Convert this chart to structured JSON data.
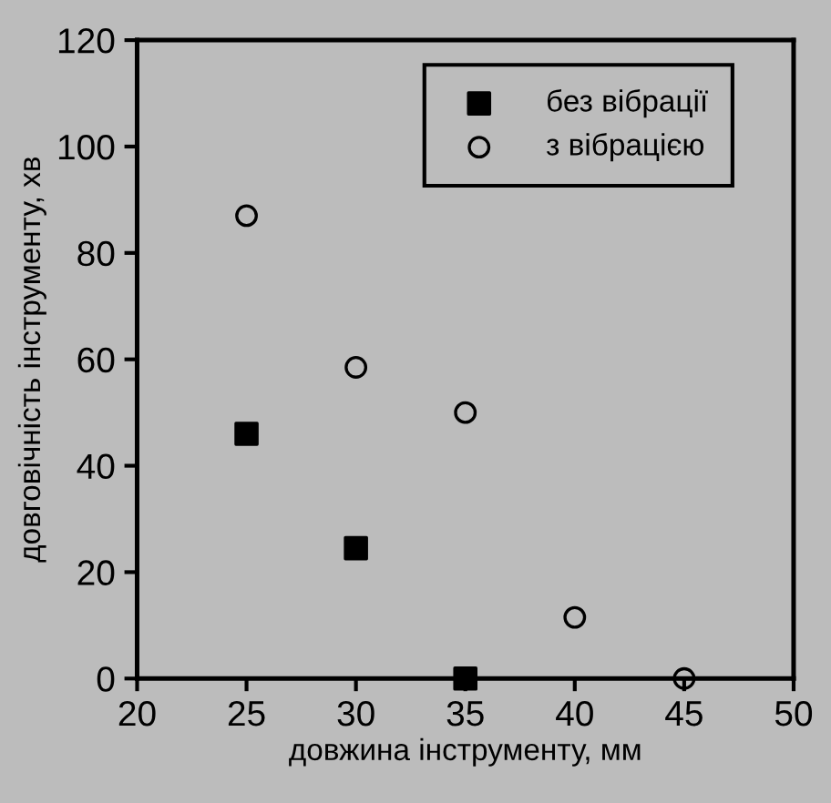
{
  "chart_data": {
    "type": "scatter",
    "xlabel": "довжина інструменту, мм",
    "ylabel": "довговічність інструменту, хв",
    "xlim": [
      20,
      50
    ],
    "xticks": [
      20,
      25,
      30,
      35,
      40,
      45,
      50
    ],
    "ylim": [
      0,
      120
    ],
    "yticks": [
      0,
      20,
      40,
      60,
      80,
      100,
      120
    ],
    "grid": false,
    "legend": "top right",
    "series": [
      {
        "name": "без вібрації",
        "color": "#000000",
        "marker": "square",
        "x": [
          25,
          30,
          35
        ],
        "values": [
          46,
          24.5,
          0
        ]
      },
      {
        "name": "з вібрацією",
        "color": "#000000",
        "marker": "circle",
        "x": [
          25,
          30,
          35,
          40,
          45
        ],
        "values": [
          87,
          58.5,
          50,
          11.5,
          0
        ]
      }
    ]
  }
}
